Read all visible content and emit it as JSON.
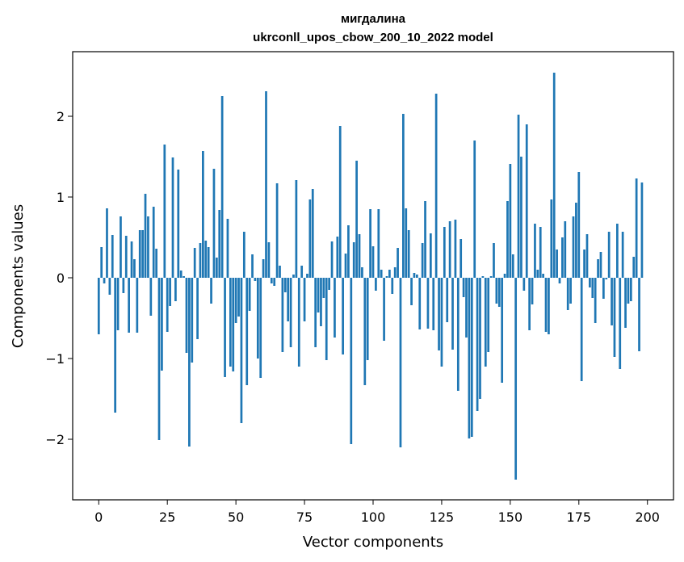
{
  "chart_data": {
    "type": "bar",
    "title_lines": [
      "мигдалина",
      "ukrconll_upos_cbow_200_10_2022 model"
    ],
    "xlabel": "Vector components",
    "ylabel": "Components values",
    "xlim": [
      -9.5,
      209.5
    ],
    "ylim": [
      -2.75,
      2.8
    ],
    "xticks": [
      0,
      25,
      50,
      75,
      100,
      125,
      150,
      175,
      200
    ],
    "yticks": [
      -2,
      -1,
      0,
      1,
      2
    ],
    "xtick_labels": [
      "0",
      "25",
      "50",
      "75",
      "100",
      "125",
      "150",
      "175",
      "200"
    ],
    "ytick_labels": [
      "−2",
      "−1",
      "0",
      "1",
      "2"
    ],
    "bar_color": "#1f77b4",
    "values": [
      -0.7,
      0.38,
      -0.07,
      0.86,
      -0.21,
      0.53,
      -1.67,
      -0.65,
      0.76,
      -0.19,
      0.52,
      -0.68,
      0.45,
      0.23,
      -0.68,
      0.59,
      0.59,
      1.04,
      0.76,
      -0.47,
      0.88,
      0.36,
      -2.01,
      -1.15,
      1.65,
      -0.67,
      -0.35,
      1.49,
      -0.29,
      1.34,
      0.09,
      0.02,
      -0.93,
      -2.09,
      -1.05,
      0.37,
      -0.76,
      0.43,
      1.57,
      0.46,
      0.38,
      -0.32,
      1.35,
      0.25,
      0.84,
      2.25,
      -1.23,
      0.73,
      -1.1,
      -1.16,
      -0.56,
      -0.48,
      -1.8,
      0.57,
      -1.33,
      -0.41,
      0.29,
      -0.04,
      -1.0,
      -1.24,
      0.23,
      2.31,
      0.44,
      -0.07,
      -0.1,
      1.17,
      0.15,
      -0.92,
      -0.18,
      -0.54,
      -0.86,
      0.04,
      1.21,
      -1.1,
      0.15,
      -0.54,
      0.05,
      0.97,
      1.1,
      -0.86,
      -0.43,
      -0.6,
      -0.25,
      -1.02,
      -0.15,
      0.45,
      -0.74,
      0.51,
      1.88,
      -0.95,
      0.3,
      0.65,
      -2.06,
      0.44,
      1.45,
      0.54,
      0.13,
      -1.33,
      -1.02,
      0.85,
      0.39,
      -0.16,
      0.85,
      0.1,
      -0.78,
      0.02,
      0.1,
      -0.2,
      0.13,
      0.37,
      -2.1,
      2.03,
      0.86,
      0.59,
      -0.34,
      0.06,
      0.04,
      -0.64,
      0.43,
      0.95,
      -0.63,
      0.55,
      -0.65,
      2.28,
      -0.9,
      -1.1,
      0.63,
      -0.55,
      0.7,
      -0.89,
      0.72,
      -1.4,
      0.48,
      -0.24,
      -0.74,
      -1.99,
      -1.97,
      1.7,
      -1.65,
      -1.5,
      0.02,
      -1.1,
      -0.92,
      0.02,
      0.43,
      -0.32,
      -0.36,
      -1.3,
      0.05,
      0.95,
      1.41,
      0.29,
      -2.5,
      2.02,
      1.5,
      -0.16,
      1.9,
      -0.65,
      -0.33,
      0.67,
      0.1,
      0.63,
      0.05,
      -0.67,
      -0.7,
      0.97,
      2.54,
      0.35,
      -0.07,
      0.5,
      0.7,
      -0.4,
      -0.32,
      0.76,
      0.93,
      1.31,
      -1.28,
      0.35,
      0.54,
      -0.12,
      -0.25,
      -0.56,
      0.23,
      0.32,
      -0.26,
      -0.02,
      0.57,
      -0.59,
      -0.98,
      0.67,
      -1.13,
      0.57,
      -0.62,
      -0.32,
      -0.29,
      0.26,
      1.23,
      -0.91,
      1.18
    ]
  }
}
